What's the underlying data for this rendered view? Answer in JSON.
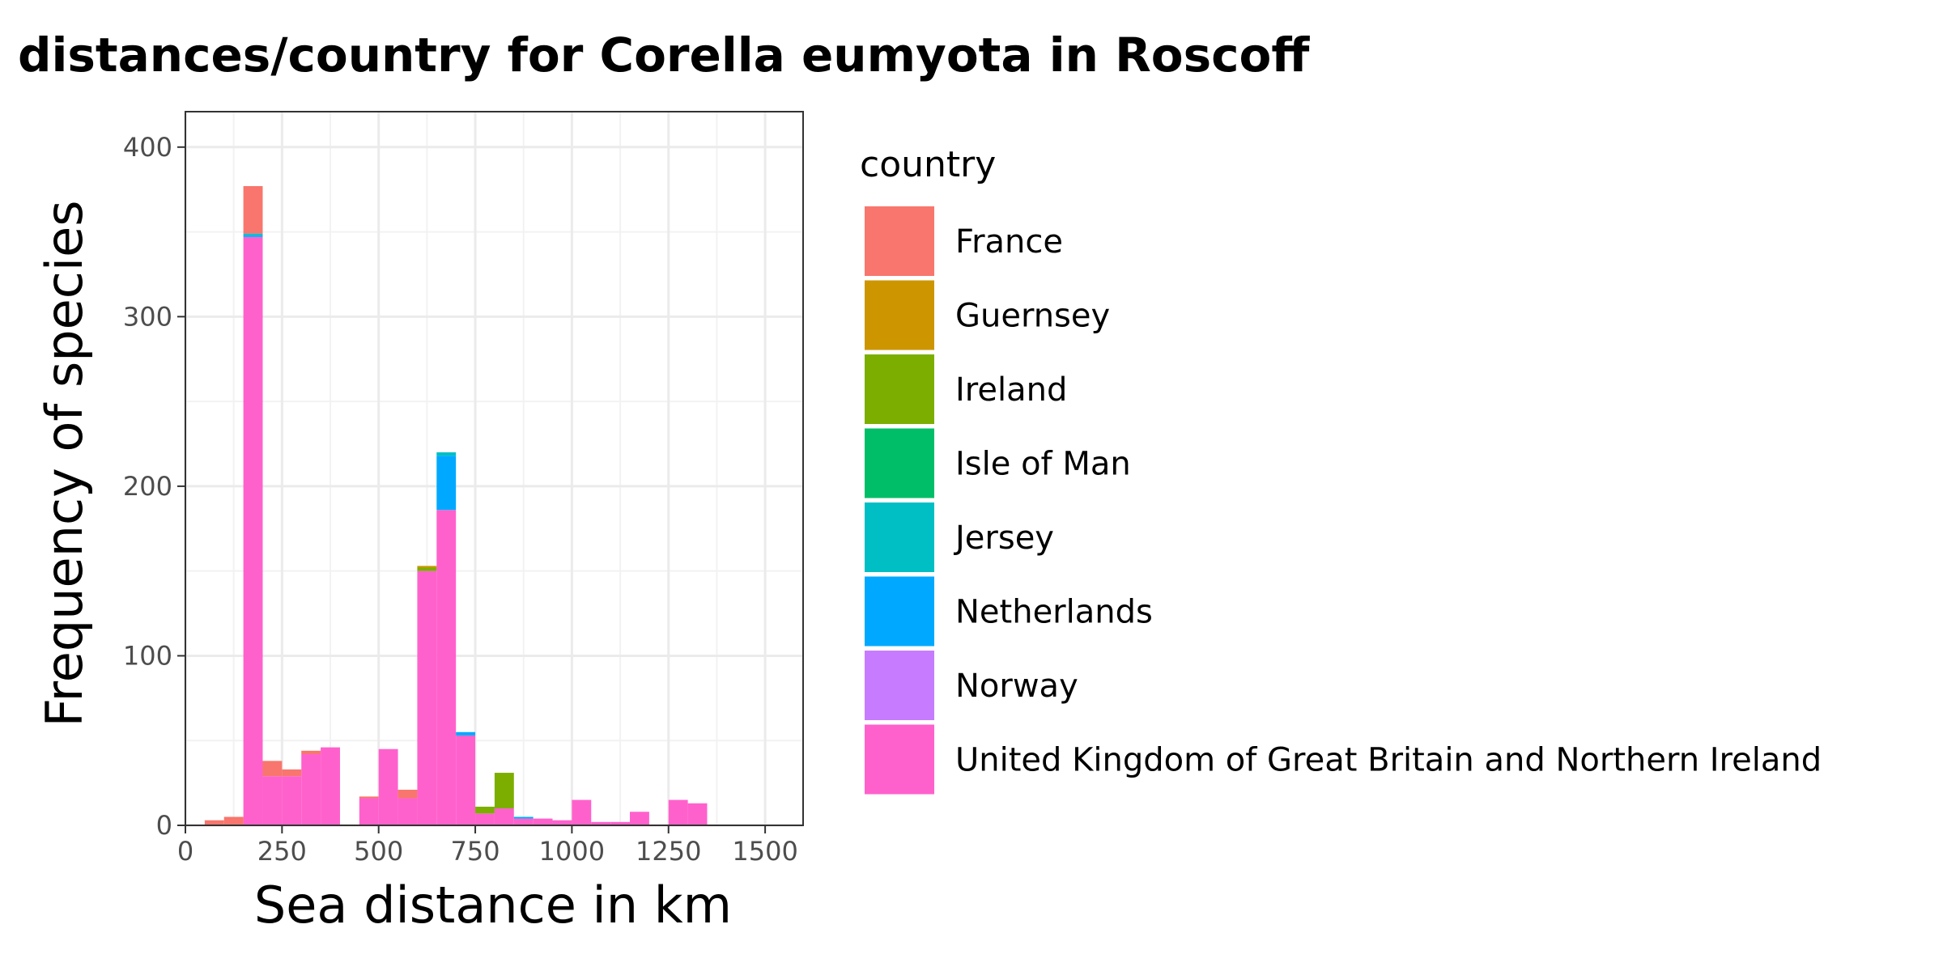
{
  "chart_data": {
    "type": "bar",
    "subtype": "stacked-histogram",
    "title": "distances/country for Corella eumyota in Roscoff",
    "xlabel": "Sea distance in km",
    "ylabel": "Frequency of species",
    "xlim": [
      0,
      1550
    ],
    "ylim": [
      0,
      420
    ],
    "x_ticks": [
      0,
      250,
      500,
      750,
      1000,
      1250,
      1500
    ],
    "y_ticks": [
      0,
      100,
      200,
      300,
      400
    ],
    "grid": true,
    "legend_position": "right",
    "legend_title": "country",
    "bin_width": 50,
    "series": [
      {
        "name": "France",
        "color": "#F8766D",
        "bins": [
          {
            "x": 75,
            "value": 3
          },
          {
            "x": 125,
            "value": 5
          },
          {
            "x": 175,
            "value": 28
          },
          {
            "x": 225,
            "value": 9
          },
          {
            "x": 275,
            "value": 4
          },
          {
            "x": 325,
            "value": 2
          },
          {
            "x": 475,
            "value": 1
          },
          {
            "x": 575,
            "value": 5
          }
        ]
      },
      {
        "name": "Guernsey",
        "color": "#CD9600",
        "bins": [
          {
            "x": 625,
            "value": 1
          }
        ]
      },
      {
        "name": "Ireland",
        "color": "#7CAE00",
        "bins": [
          {
            "x": 625,
            "value": 2
          },
          {
            "x": 775,
            "value": 4
          },
          {
            "x": 825,
            "value": 21
          }
        ]
      },
      {
        "name": "Isle of Man",
        "color": "#00BE67",
        "bins": []
      },
      {
        "name": "Jersey",
        "color": "#00BFC4",
        "bins": [
          {
            "x": 175,
            "value": 1
          },
          {
            "x": 675,
            "value": 2
          }
        ]
      },
      {
        "name": "Netherlands",
        "color": "#00A9FF",
        "bins": [
          {
            "x": 175,
            "value": 1
          },
          {
            "x": 675,
            "value": 32
          },
          {
            "x": 725,
            "value": 2
          },
          {
            "x": 875,
            "value": 1
          }
        ]
      },
      {
        "name": "Norway",
        "color": "#C77CFF",
        "bins": []
      },
      {
        "name": "United Kingdom of Great Britain and Northern Ireland",
        "color": "#FF61CC",
        "bins": [
          {
            "x": 175,
            "value": 347
          },
          {
            "x": 225,
            "value": 29
          },
          {
            "x": 275,
            "value": 29
          },
          {
            "x": 325,
            "value": 42
          },
          {
            "x": 375,
            "value": 46
          },
          {
            "x": 475,
            "value": 16
          },
          {
            "x": 525,
            "value": 45
          },
          {
            "x": 575,
            "value": 16
          },
          {
            "x": 625,
            "value": 150
          },
          {
            "x": 675,
            "value": 186
          },
          {
            "x": 725,
            "value": 53
          },
          {
            "x": 775,
            "value": 7
          },
          {
            "x": 825,
            "value": 10
          },
          {
            "x": 875,
            "value": 4
          },
          {
            "x": 925,
            "value": 4
          },
          {
            "x": 975,
            "value": 3
          },
          {
            "x": 1025,
            "value": 15
          },
          {
            "x": 1075,
            "value": 2
          },
          {
            "x": 1125,
            "value": 2
          },
          {
            "x": 1175,
            "value": 8
          },
          {
            "x": 1275,
            "value": 15
          },
          {
            "x": 1325,
            "value": 13
          }
        ]
      }
    ]
  }
}
